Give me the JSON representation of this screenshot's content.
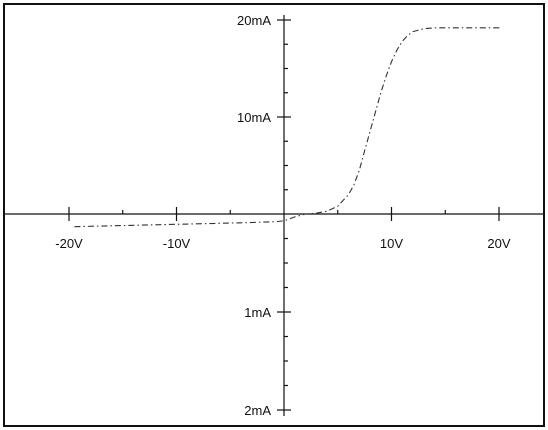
{
  "chart_data": {
    "type": "line",
    "title": "",
    "xlabel": "",
    "ylabel": "",
    "xlim": [
      -21.5,
      24.5
    ],
    "grid": false,
    "legend": "none",
    "x_ticks": [
      {
        "value": -20,
        "label": "-20V"
      },
      {
        "value": -10,
        "label": "-10V"
      },
      {
        "value": 10,
        "label": "10V"
      },
      {
        "value": 20,
        "label": "20V"
      }
    ],
    "x_minor_ticks": [
      -15,
      -5,
      5,
      15
    ],
    "y_ticks_upper": [
      {
        "value": 20,
        "label": "20mA"
      },
      {
        "value": 10,
        "label": "10mA"
      }
    ],
    "y_minor_ticks_upper": [
      2.5,
      5,
      7.5,
      12.5,
      15,
      17.5
    ],
    "y_ticks_lower": [
      {
        "value": 1,
        "label": "1mA"
      },
      {
        "value": 2,
        "label": "2mA"
      }
    ],
    "y_minor_ticks_lower": [
      0.25,
      0.5,
      0.75,
      1.25,
      1.5,
      1.75
    ],
    "series": [
      {
        "style": "dash-dot",
        "color": "#333333",
        "points": [
          [
            -19.5,
            -0.13
          ],
          [
            -16,
            -0.12
          ],
          [
            -12,
            -0.11
          ],
          [
            -8,
            -0.1
          ],
          [
            -4,
            -0.09
          ],
          [
            -1,
            -0.08
          ],
          [
            0,
            -0.07
          ],
          [
            1,
            -0.03
          ],
          [
            2,
            0.0
          ],
          [
            3,
            0.08
          ],
          [
            4,
            0.3
          ],
          [
            5,
            0.8
          ],
          [
            6,
            2.0
          ],
          [
            6.5,
            3.0
          ],
          [
            7,
            4.5
          ],
          [
            7.5,
            6.5
          ],
          [
            8,
            8.5
          ],
          [
            8.5,
            10.5
          ],
          [
            9,
            12.5
          ],
          [
            9.5,
            14.2
          ],
          [
            10,
            15.7
          ],
          [
            10.5,
            16.9
          ],
          [
            11,
            17.8
          ],
          [
            11.5,
            18.4
          ],
          [
            12,
            18.8
          ],
          [
            13,
            19.1
          ],
          [
            14,
            19.2
          ],
          [
            16,
            19.2
          ],
          [
            19,
            19.2
          ],
          [
            20.2,
            19.2
          ]
        ]
      }
    ],
    "colors": {
      "axis": "#111111",
      "frame": "#111111",
      "background": "#ffffff"
    }
  }
}
